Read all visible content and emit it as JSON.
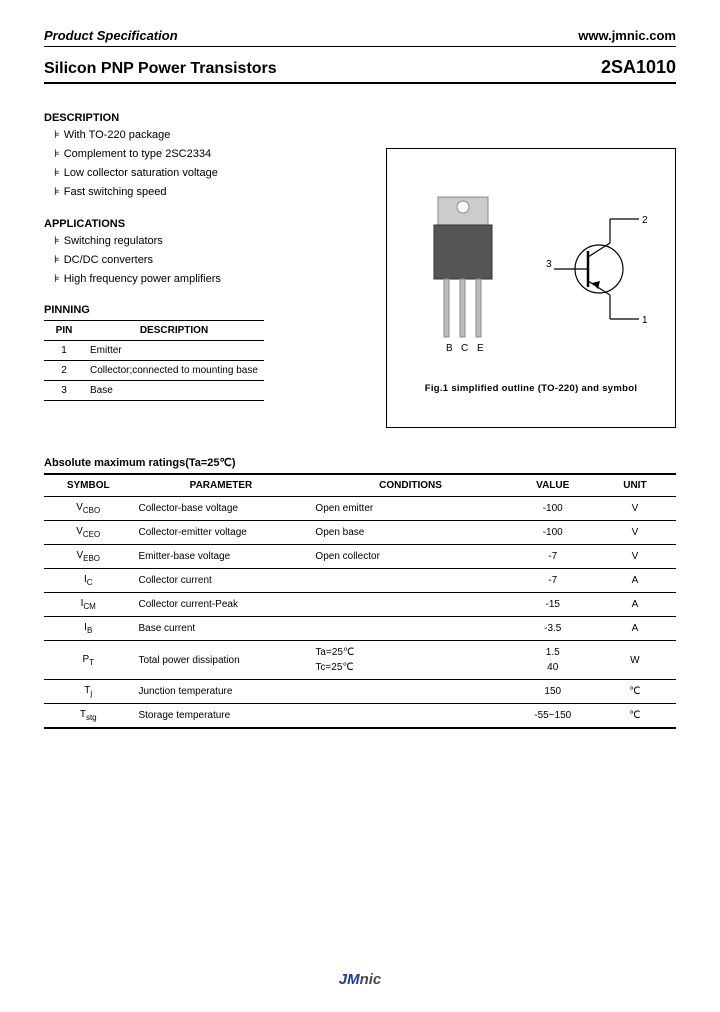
{
  "header": {
    "left": "Product Specification",
    "right": "www.jmnic.com"
  },
  "title": {
    "left": "Silicon PNP Power Transistors",
    "right": "2SA1010"
  },
  "description": {
    "heading": "DESCRIPTION",
    "items": [
      "With TO-220 package",
      "Complement to type 2SC2334",
      "Low collector saturation voltage",
      "Fast switching speed"
    ]
  },
  "applications": {
    "heading": "APPLICATIONS",
    "items": [
      "Switching regulators",
      "DC/DC converters",
      "High frequency power amplifiers"
    ]
  },
  "pinning": {
    "heading": "PINNING",
    "col1": "PIN",
    "col2": "DESCRIPTION",
    "rows": [
      {
        "pin": "1",
        "desc": "Emitter"
      },
      {
        "pin": "2",
        "desc": "Collector;connected to mounting base"
      },
      {
        "pin": "3",
        "desc": "Base"
      }
    ]
  },
  "figure": {
    "caption": "Fig.1 simplified outline (TO-220) and symbol",
    "pin_labels": {
      "b": "B",
      "c": "C",
      "e": "E"
    },
    "sym_labels": {
      "n1": "1",
      "n2": "2",
      "n3": "3"
    },
    "colors": {
      "pkg_body": "#666666",
      "pkg_tab": "#cccccc",
      "lead": "#bbbbbb",
      "outline": "#000000"
    }
  },
  "ratings": {
    "heading": "Absolute maximum ratings(Ta=25℃)",
    "cols": {
      "symbol": "SYMBOL",
      "param": "PARAMETER",
      "cond": "CONDITIONS",
      "value": "VALUE",
      "unit": "UNIT"
    },
    "rows": [
      {
        "sym": "V",
        "sub": "CBO",
        "param": "Collector-base voltage",
        "cond": "Open emitter",
        "value": "-100",
        "unit": "V"
      },
      {
        "sym": "V",
        "sub": "CEO",
        "param": "Collector-emitter voltage",
        "cond": "Open base",
        "value": "-100",
        "unit": "V"
      },
      {
        "sym": "V",
        "sub": "EBO",
        "param": "Emitter-base voltage",
        "cond": "Open collector",
        "value": "-7",
        "unit": "V"
      },
      {
        "sym": "I",
        "sub": "C",
        "param": "Collector current",
        "cond": "",
        "value": "-7",
        "unit": "A"
      },
      {
        "sym": "I",
        "sub": "CM",
        "param": "Collector current-Peak",
        "cond": "",
        "value": "-15",
        "unit": "A"
      },
      {
        "sym": "I",
        "sub": "B",
        "param": "Base current",
        "cond": "",
        "value": "-3.5",
        "unit": "A"
      }
    ],
    "pt": {
      "sym": "P",
      "sub": "T",
      "param": "Total power dissipation",
      "cond1": "Ta=25℃",
      "val1": "1.5",
      "cond2": "Tc=25℃",
      "val2": "40",
      "unit": "W"
    },
    "tj": {
      "sym": "T",
      "sub": "j",
      "param": "Junction temperature",
      "cond": "",
      "value": "150",
      "unit": "℃"
    },
    "tstg": {
      "sym": "T",
      "sub": "stg",
      "param": "Storage temperature",
      "cond": "",
      "value": "-55~150",
      "unit": "℃"
    }
  },
  "footer": {
    "jm": "JM",
    "nic": "nic"
  }
}
